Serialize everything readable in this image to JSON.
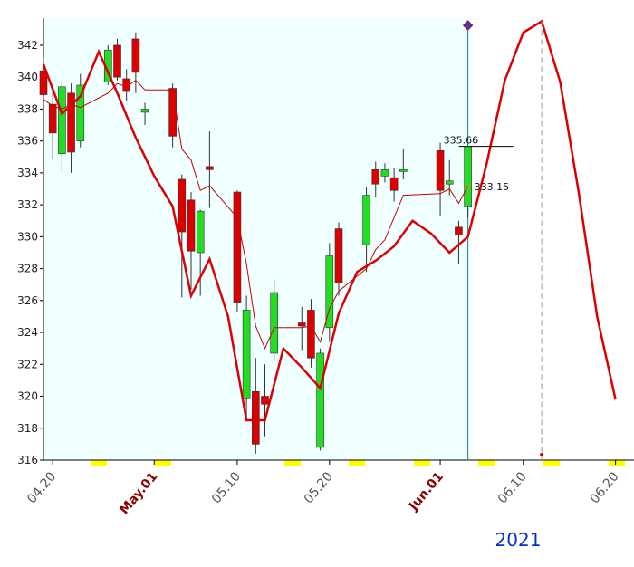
{
  "chart_data": {
    "type": "candlestick",
    "year": "2021",
    "xlim": [
      "04.19",
      "06.22"
    ],
    "ylim": [
      316,
      343.7
    ],
    "yticks": [
      316,
      318,
      320,
      322,
      324,
      326,
      328,
      330,
      332,
      334,
      336,
      338,
      340,
      342
    ],
    "xticks": [
      {
        "value": "04.20",
        "label": "04.20",
        "color": "#555555"
      },
      {
        "value": "05.01",
        "label": "May.01",
        "color": "#8b0000"
      },
      {
        "value": "05.10",
        "label": "05.10",
        "color": "#555555"
      },
      {
        "value": "05.20",
        "label": "05.20",
        "color": "#555555"
      },
      {
        "value": "06.01",
        "label": "Jun.01",
        "color": "#8b0000"
      },
      {
        "value": "06.10",
        "label": "06.10",
        "color": "#555555"
      },
      {
        "value": "06.20",
        "label": "06.20",
        "color": "#555555"
      }
    ],
    "up_color": "#22dd22",
    "down_color": "#dd0000",
    "x": [
      "04.19",
      "04.20",
      "04.21",
      "04.22",
      "04.23",
      "04.26",
      "04.27",
      "04.28",
      "04.29",
      "04.30",
      "05.03",
      "05.04",
      "05.05",
      "05.06",
      "05.07",
      "05.10",
      "05.11",
      "05.12",
      "05.13",
      "05.14",
      "05.17",
      "05.18",
      "05.19",
      "05.20",
      "05.21",
      "05.24",
      "05.25",
      "05.26",
      "05.27",
      "05.28",
      "06.01",
      "06.02",
      "06.03",
      "06.04"
    ],
    "open": [
      340.4,
      338.3,
      335.2,
      339.0,
      336.0,
      339.7,
      342.0,
      339.9,
      342.4,
      337.8,
      339.3,
      333.6,
      332.3,
      329.0,
      334.4,
      332.8,
      319.9,
      320.3,
      320.0,
      322.7,
      324.6,
      325.4,
      316.8,
      324.3,
      330.5,
      329.5,
      334.2,
      333.8,
      333.7,
      334.1,
      335.4,
      333.3,
      330.6,
      331.9
    ],
    "high": [
      341.3,
      339.5,
      339.8,
      339.6,
      340.2,
      342.0,
      342.4,
      340.5,
      342.8,
      338.4,
      339.6,
      333.9,
      332.8,
      331.7,
      336.6,
      332.9,
      326.3,
      322.4,
      322.0,
      327.3,
      325.6,
      326.1,
      323.0,
      329.6,
      330.9,
      333.1,
      334.7,
      334.6,
      334.3,
      335.5,
      335.9,
      334.8,
      331.0,
      335.7
    ],
    "low": [
      338.3,
      334.9,
      334.0,
      334.0,
      335.6,
      339.5,
      339.8,
      338.5,
      339.0,
      337.0,
      335.6,
      326.2,
      326.7,
      326.3,
      331.8,
      325.3,
      318.6,
      316.4,
      317.5,
      322.2,
      322.9,
      321.8,
      316.6,
      323.4,
      326.3,
      327.8,
      332.5,
      333.4,
      332.2,
      333.6,
      331.3,
      332.6,
      328.3,
      331.2
    ],
    "close": [
      338.9,
      336.5,
      339.4,
      335.3,
      339.5,
      341.7,
      340.0,
      339.1,
      340.3,
      338.0,
      336.3,
      330.3,
      329.1,
      331.6,
      334.2,
      325.9,
      325.4,
      317.0,
      319.5,
      326.5,
      324.4,
      322.4,
      322.7,
      328.8,
      327.1,
      332.6,
      333.3,
      334.2,
      332.9,
      334.2,
      332.9,
      333.5,
      330.1,
      335.66
    ],
    "lines": [
      {
        "color": "#cc0000",
        "width": 1,
        "x": [
          "04.19",
          "04.20",
          "04.21",
          "04.22",
          "04.23",
          "04.26",
          "04.27",
          "04.28",
          "04.29",
          "04.30",
          "05.03",
          "05.04",
          "05.05",
          "05.06",
          "05.07",
          "05.10",
          "05.11",
          "05.12",
          "05.13",
          "05.14",
          "05.17",
          "05.18",
          "05.19",
          "05.20",
          "05.21",
          "05.24",
          "05.25",
          "05.26",
          "05.27",
          "05.28",
          "06.01",
          "06.02",
          "06.03",
          "06.04"
        ],
        "values": [
          338.6,
          338.2,
          338.0,
          338.3,
          338.1,
          339.0,
          339.6,
          339.4,
          339.8,
          339.2,
          339.2,
          335.5,
          334.8,
          332.9,
          333.2,
          331.2,
          328.3,
          324.4,
          323.0,
          324.3,
          324.3,
          324.4,
          323.4,
          325.5,
          326.6,
          328.0,
          329.2,
          329.8,
          331.2,
          332.6,
          332.7,
          333.0,
          332.1,
          333.15
        ]
      },
      {
        "color": "#dd0000",
        "width": 2.5,
        "x": [
          "04.19",
          "04.21",
          "04.23",
          "04.25",
          "04.27",
          "04.29",
          "05.01",
          "05.03",
          "05.05",
          "05.07",
          "05.09",
          "05.11",
          "05.13",
          "05.15",
          "05.17",
          "05.19",
          "05.21",
          "05.23",
          "05.25",
          "05.27",
          "05.29",
          "05.31",
          "06.02",
          "06.04",
          "06.06",
          "06.08",
          "06.10",
          "06.12",
          "06.14",
          "06.16",
          "06.18",
          "06.20"
        ],
        "values": [
          340.8,
          337.7,
          338.8,
          341.6,
          339.0,
          336.2,
          333.8,
          331.9,
          326.3,
          328.6,
          325.0,
          318.5,
          318.5,
          323.0,
          321.8,
          320.5,
          325.2,
          327.8,
          328.5,
          329.4,
          331.0,
          330.2,
          329.0,
          330.0,
          334.5,
          339.8,
          342.8,
          343.5,
          339.7,
          332.8,
          325.0,
          319.8
        ]
      }
    ],
    "annotations": [
      "335.66",
      "333.15"
    ]
  }
}
